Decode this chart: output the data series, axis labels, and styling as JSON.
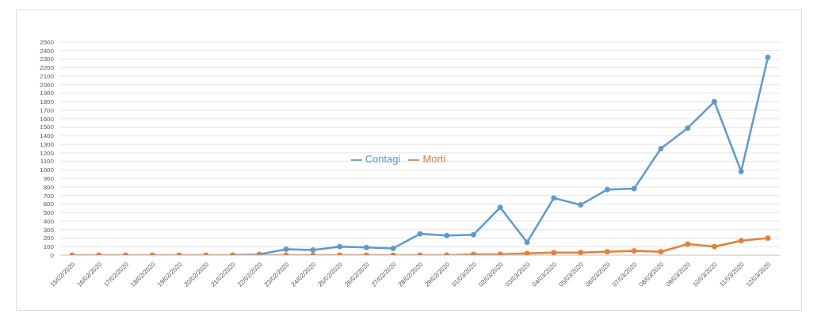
{
  "chart_data": {
    "type": "line",
    "categories": [
      "15/02/2020",
      "16/02/2020",
      "17/02/2020",
      "18/02/2020",
      "19/02/2020",
      "20/02/2020",
      "21/02/2020",
      "22/02/2020",
      "23/02/2020",
      "24/02/2020",
      "25/02/2020",
      "26/02/2020",
      "27/02/2020",
      "28/02/2020",
      "29/02/2020",
      "01/03/2020",
      "02/03/2020",
      "03/03/2020",
      "04/03/2020",
      "05/03/2020",
      "06/03/2020",
      "07/03/2020",
      "08/03/2020",
      "09/03/2020",
      "10/03/2020",
      "11/03/2020",
      "12/03/2020"
    ],
    "series": [
      {
        "name": "Contagi",
        "color": "#5b9bd5",
        "values": [
          null,
          null,
          null,
          null,
          null,
          null,
          0,
          10,
          70,
          60,
          100,
          90,
          80,
          250,
          230,
          240,
          560,
          150,
          670,
          590,
          770,
          780,
          1250,
          1490,
          1800,
          980,
          2320
        ]
      },
      {
        "name": "Morti",
        "color": "#ed7d31",
        "values": [
          0,
          0,
          0,
          0,
          0,
          0,
          0,
          0,
          0,
          0,
          0,
          0,
          0,
          0,
          0,
          10,
          10,
          20,
          30,
          30,
          40,
          50,
          40,
          130,
          100,
          170,
          200
        ]
      }
    ],
    "ylim": [
      0,
      2500
    ],
    "yticks": [
      0,
      100,
      200,
      300,
      400,
      500,
      600,
      700,
      800,
      900,
      1000,
      1100,
      1200,
      1300,
      1400,
      1500,
      1600,
      1700,
      1800,
      1900,
      2000,
      2100,
      2200,
      2300,
      2400,
      2500
    ],
    "grid": "y",
    "legend": "center",
    "marker": "circle",
    "line_style": "solid"
  }
}
